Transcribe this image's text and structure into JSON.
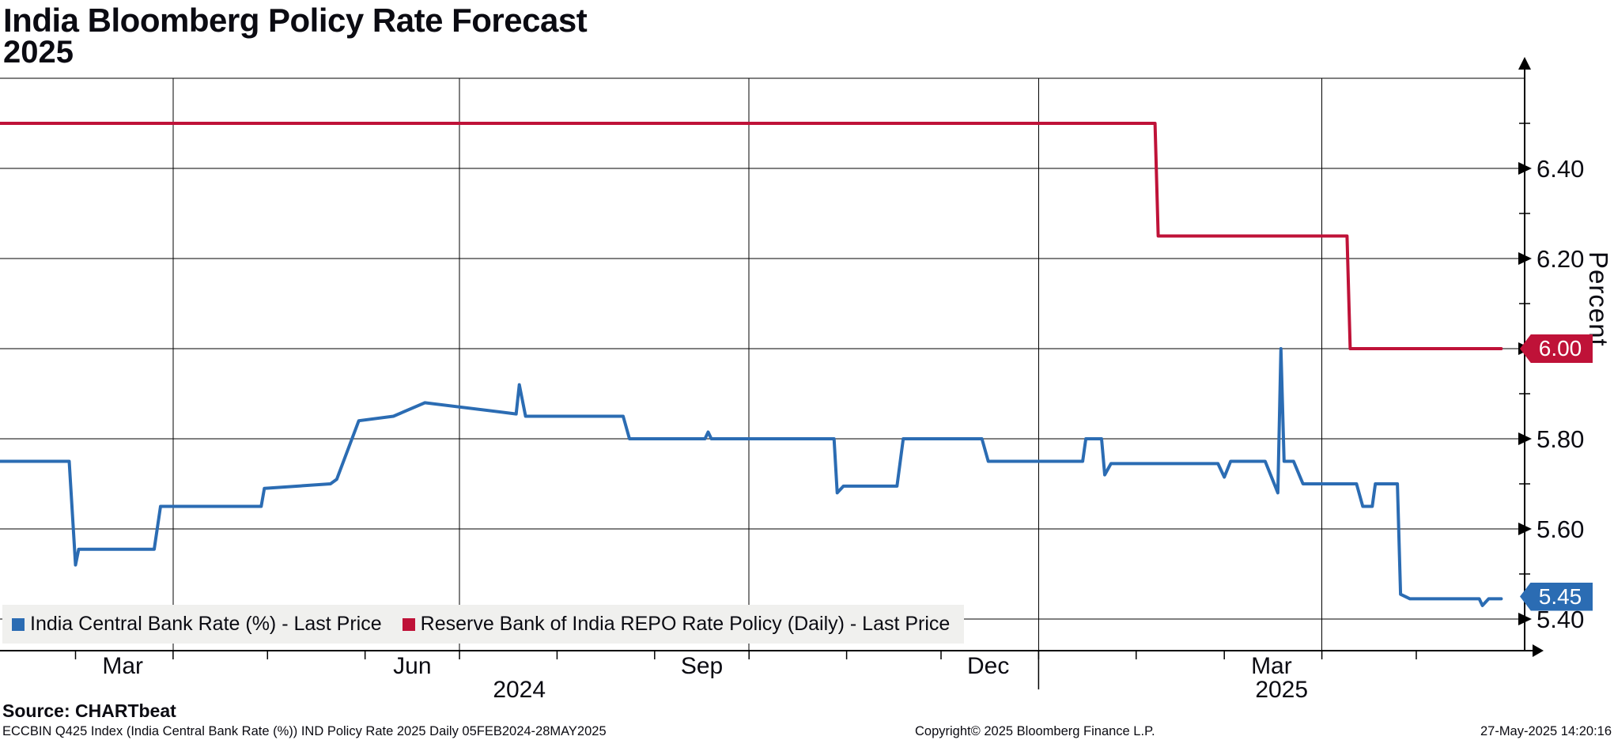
{
  "header": {
    "title": "India Bloomberg Policy Rate Forecast",
    "subtitle": "2025"
  },
  "y_axis": {
    "title": "Percent"
  },
  "price_badges": [
    {
      "name": "repo-rate",
      "label": "6.00",
      "value": 6.0,
      "color": "#bf1238"
    },
    {
      "name": "central-bank-rate",
      "label": "5.45",
      "value": 5.45,
      "color": "#2b6cb3"
    }
  ],
  "legend": {
    "items": [
      {
        "label": "India Central Bank Rate (%) - Last Price",
        "color": "#2b6cb3"
      },
      {
        "label": "Reserve Bank of India REPO Rate Policy (Daily) - Last Price",
        "color": "#bf1238"
      }
    ]
  },
  "source_line": "Source: CHARTbeat",
  "footer": {
    "left": "ECCBIN Q425 Index (India Central Bank Rate (%)) IND Policy Rate 2025  Daily 05FEB2024-28MAY2025",
    "center": "Copyright© 2025 Bloomberg Finance L.P.",
    "right": "27-May-2025 14:20:16"
  },
  "chart_data": {
    "type": "line",
    "title": "India Bloomberg Policy Rate Forecast 2025",
    "ylabel": "Percent",
    "ylim": [
      5.33,
      6.6
    ],
    "x_range": [
      "2024-02-05",
      "2025-05-28"
    ],
    "grid": true,
    "legend_position": "bottom-left",
    "y_ticks": [
      {
        "v": 6.4,
        "t": "6.40",
        "badge": false
      },
      {
        "v": 6.2,
        "t": "6.20",
        "badge": false
      },
      {
        "v": 6.0,
        "t": "6.00",
        "badge": true
      },
      {
        "v": 5.8,
        "t": "5.80",
        "badge": false
      },
      {
        "v": 5.6,
        "t": "5.60",
        "badge": false
      },
      {
        "v": 5.4,
        "t": "5.40",
        "badge": false
      }
    ],
    "y_minor_ticks": [
      6.5,
      6.3,
      6.1,
      5.9,
      5.7,
      5.5
    ],
    "grid_top_value": 6.6,
    "vgrid_dates": [
      "2024-04-01",
      "2024-07-01",
      "2024-10-01",
      "2025-01-01",
      "2025-04-01"
    ],
    "month_tick_dates": [
      "2024-03-01",
      "2024-04-01",
      "2024-05-01",
      "2024-06-01",
      "2024-07-01",
      "2024-08-01",
      "2024-09-01",
      "2024-10-01",
      "2024-11-01",
      "2024-12-01",
      "2025-01-01",
      "2025-02-01",
      "2025-03-01",
      "2025-04-01",
      "2025-05-01"
    ],
    "month_labels": [
      {
        "label": "Mar",
        "date": "2024-03-16"
      },
      {
        "label": "Jun",
        "date": "2024-06-16"
      },
      {
        "label": "Sep",
        "date": "2024-09-16"
      },
      {
        "label": "Dec",
        "date": "2024-12-16"
      },
      {
        "label": "Mar",
        "date": "2025-03-16"
      }
    ],
    "year_separator_date": "2025-01-01",
    "year_labels": [
      "2024",
      "2025"
    ],
    "series": [
      {
        "name": "India Central Bank Rate (%) - Last Price",
        "color": "#2b6cb3",
        "last_price": 5.45,
        "points": [
          [
            "2024-02-05",
            5.75
          ],
          [
            "2024-02-28",
            5.75
          ],
          [
            "2024-03-01",
            5.52
          ],
          [
            "2024-03-02",
            5.555
          ],
          [
            "2024-03-26",
            5.555
          ],
          [
            "2024-03-28",
            5.65
          ],
          [
            "2024-04-29",
            5.65
          ],
          [
            "2024-04-30",
            5.69
          ],
          [
            "2024-05-21",
            5.7
          ],
          [
            "2024-05-23",
            5.71
          ],
          [
            "2024-05-30",
            5.84
          ],
          [
            "2024-06-10",
            5.85
          ],
          [
            "2024-06-20",
            5.88
          ],
          [
            "2024-07-19",
            5.855
          ],
          [
            "2024-07-20",
            5.92
          ],
          [
            "2024-07-22",
            5.85
          ],
          [
            "2024-08-22",
            5.85
          ],
          [
            "2024-08-24",
            5.8
          ],
          [
            "2024-09-17",
            5.8
          ],
          [
            "2024-09-18",
            5.815
          ],
          [
            "2024-09-19",
            5.8
          ],
          [
            "2024-10-28",
            5.8
          ],
          [
            "2024-10-29",
            5.68
          ],
          [
            "2024-10-31",
            5.695
          ],
          [
            "2024-11-17",
            5.695
          ],
          [
            "2024-11-19",
            5.8
          ],
          [
            "2024-12-14",
            5.8
          ],
          [
            "2024-12-16",
            5.75
          ],
          [
            "2025-01-15",
            5.75
          ],
          [
            "2025-01-16",
            5.8
          ],
          [
            "2025-01-21",
            5.8
          ],
          [
            "2025-01-22",
            5.72
          ],
          [
            "2025-01-24",
            5.745
          ],
          [
            "2025-02-27",
            5.745
          ],
          [
            "2025-03-01",
            5.715
          ],
          [
            "2025-03-03",
            5.75
          ],
          [
            "2025-03-14",
            5.75
          ],
          [
            "2025-03-18",
            5.68
          ],
          [
            "2025-03-19",
            6.0
          ],
          [
            "2025-03-20",
            5.75
          ],
          [
            "2025-03-23",
            5.75
          ],
          [
            "2025-03-26",
            5.7
          ],
          [
            "2025-04-12",
            5.7
          ],
          [
            "2025-04-14",
            5.65
          ],
          [
            "2025-04-17",
            5.65
          ],
          [
            "2025-04-18",
            5.7
          ],
          [
            "2025-04-25",
            5.7
          ],
          [
            "2025-04-26",
            5.455
          ],
          [
            "2025-04-29",
            5.445
          ],
          [
            "2025-05-21",
            5.445
          ],
          [
            "2025-05-22",
            5.43
          ],
          [
            "2025-05-24",
            5.445
          ],
          [
            "2025-05-28",
            5.445
          ]
        ]
      },
      {
        "name": "Reserve Bank of India REPO Rate Policy (Daily) - Last Price",
        "color": "#bf1238",
        "last_price": 6.0,
        "points": [
          [
            "2024-02-05",
            6.5
          ],
          [
            "2025-02-07",
            6.5
          ],
          [
            "2025-02-08",
            6.25
          ],
          [
            "2025-04-09",
            6.25
          ],
          [
            "2025-04-10",
            6.0
          ],
          [
            "2025-05-28",
            6.0
          ]
        ]
      }
    ]
  }
}
